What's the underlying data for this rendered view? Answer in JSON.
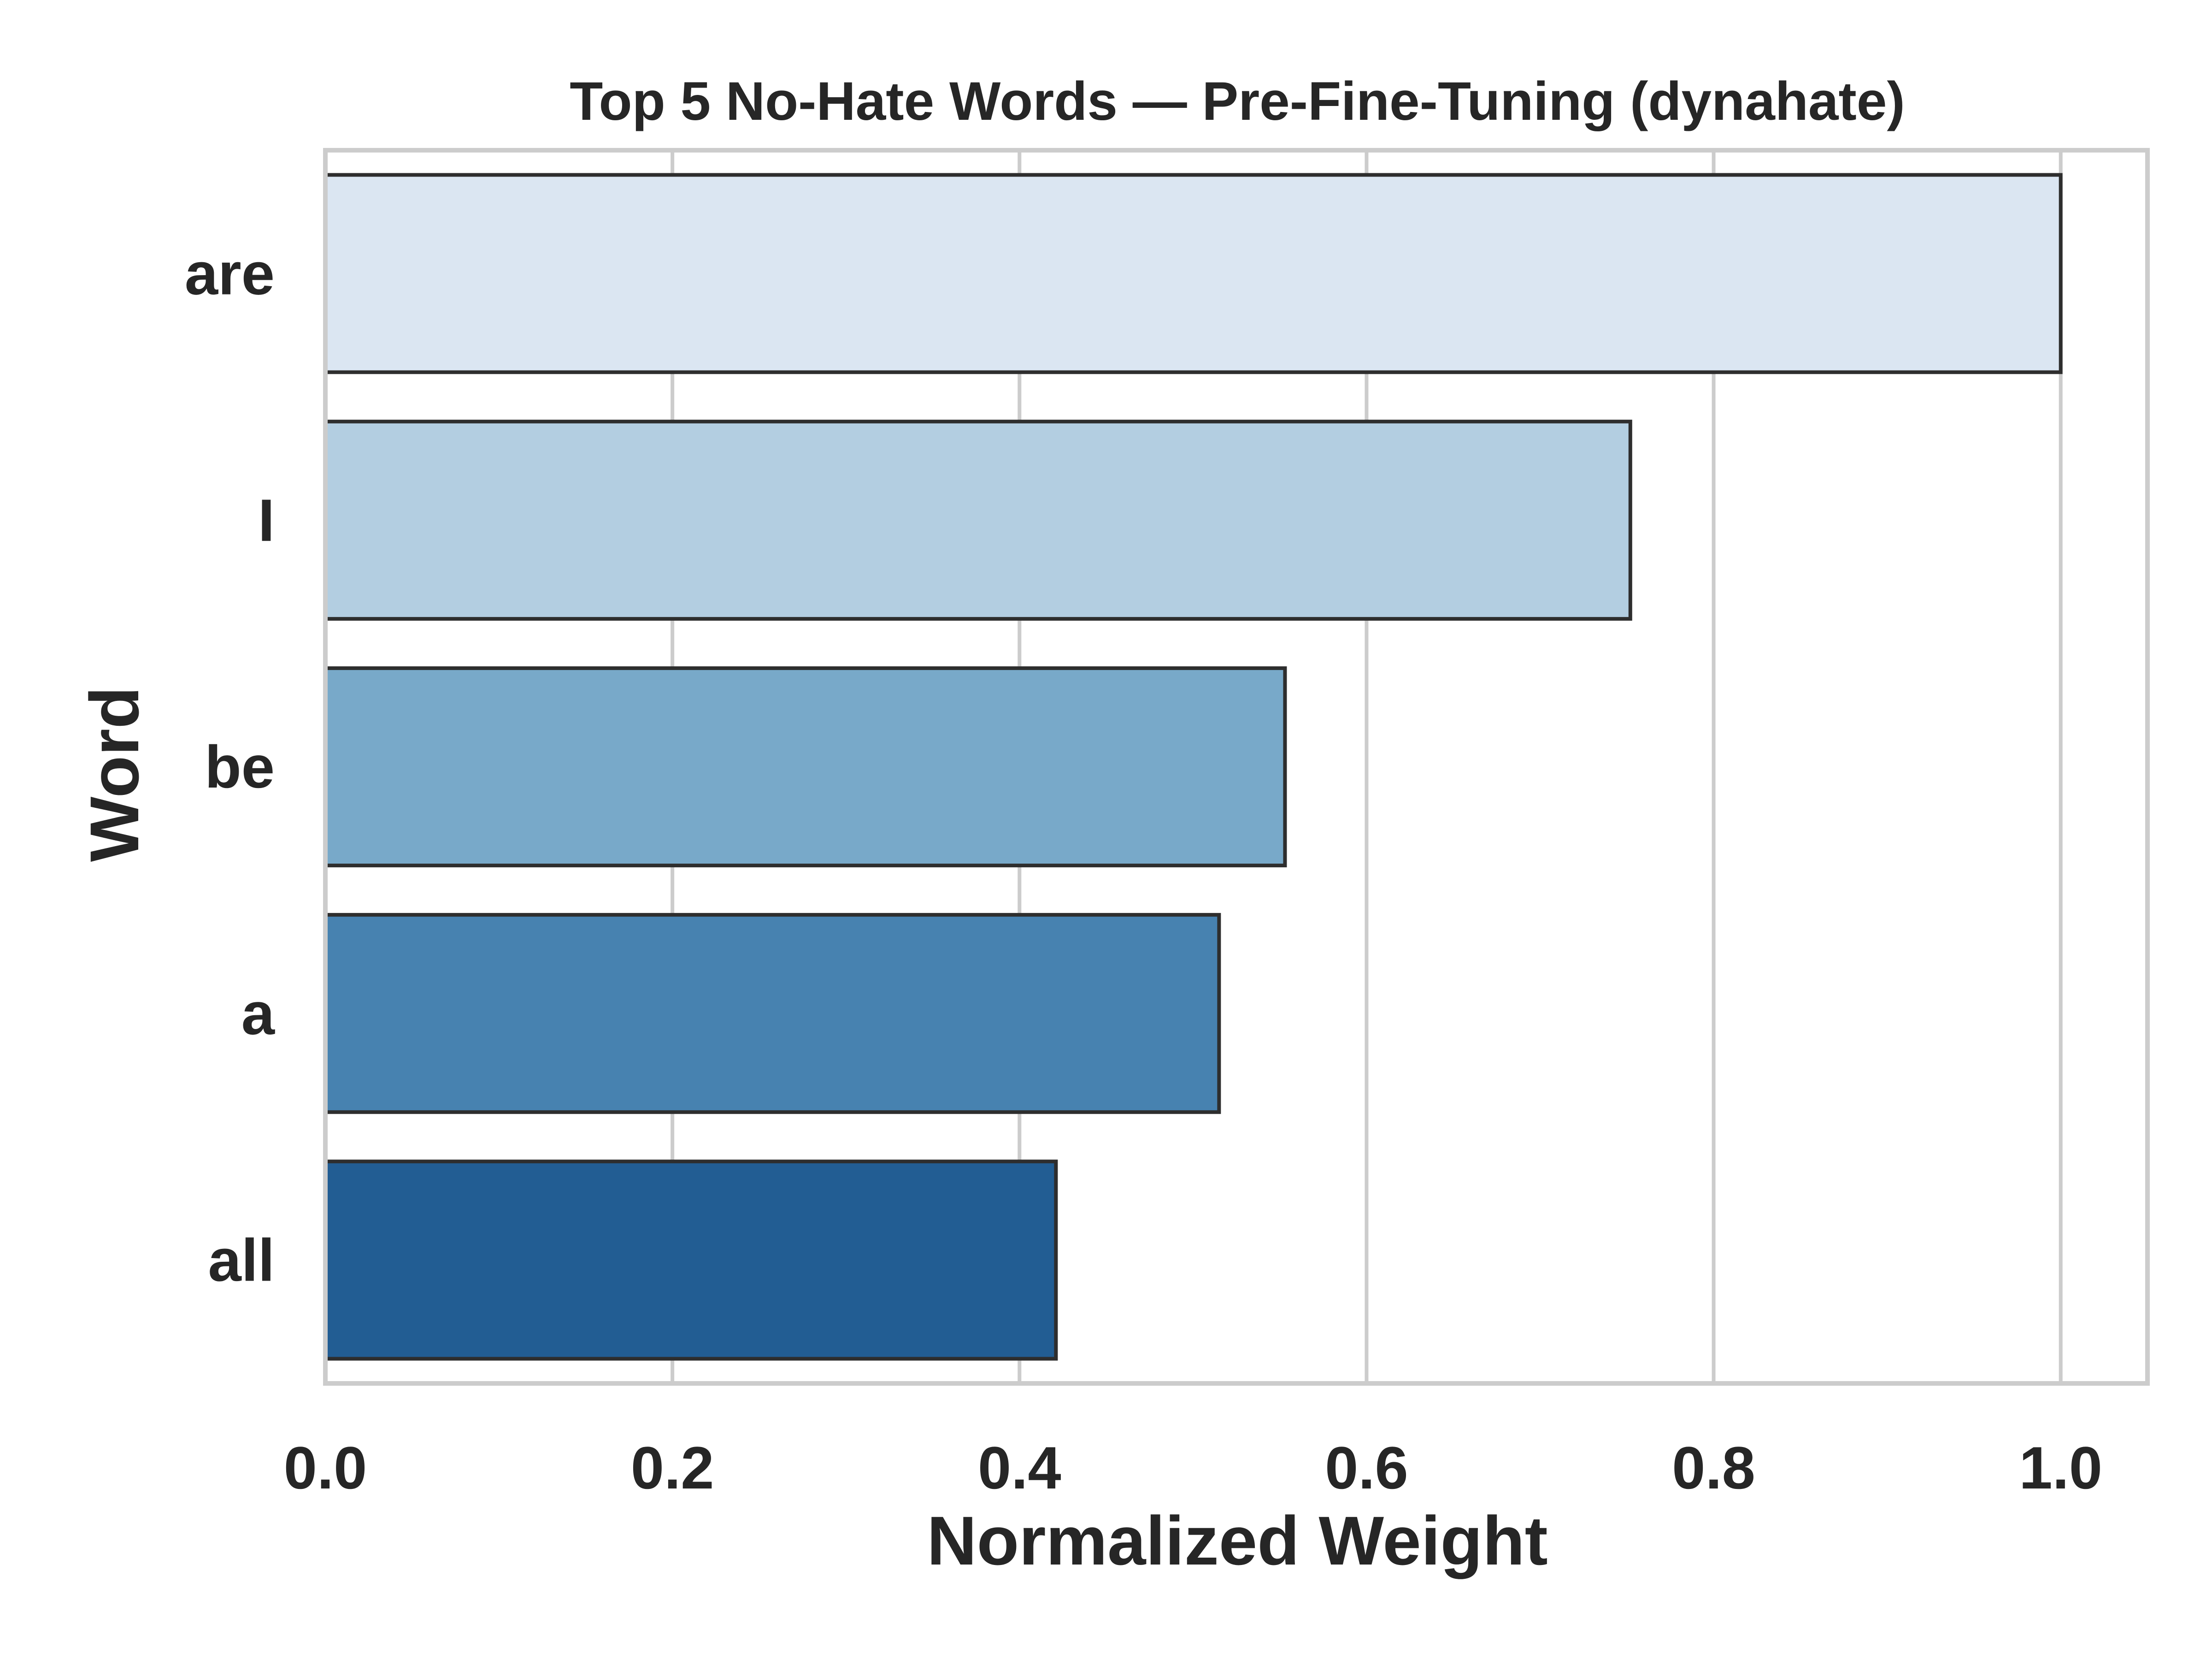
{
  "chart_data": {
    "type": "bar",
    "orientation": "horizontal",
    "title": "Top 5 No-Hate Words — Pre-Fine-Tuning (dynahate)",
    "xlabel": "Normalized Weight",
    "ylabel": "Word",
    "categories": [
      "are",
      "I",
      "be",
      "a",
      "all"
    ],
    "values": [
      1.0,
      0.752,
      0.553,
      0.515,
      0.421
    ],
    "xlim": [
      0,
      1.05
    ],
    "xticks": [
      0.0,
      0.2,
      0.4,
      0.6,
      0.8,
      1.0
    ],
    "xtick_labels": [
      "0.0",
      "0.2",
      "0.4",
      "0.6",
      "0.8",
      "1.0"
    ],
    "grid": "vertical",
    "legend": "none",
    "colors": [
      "#dbe6f2",
      "#b3cee1",
      "#78a9c9",
      "#4782b0",
      "#225d93"
    ],
    "edge_color": "#2e2e2e",
    "grid_color": "#cccccc",
    "text_color": "#262626"
  }
}
